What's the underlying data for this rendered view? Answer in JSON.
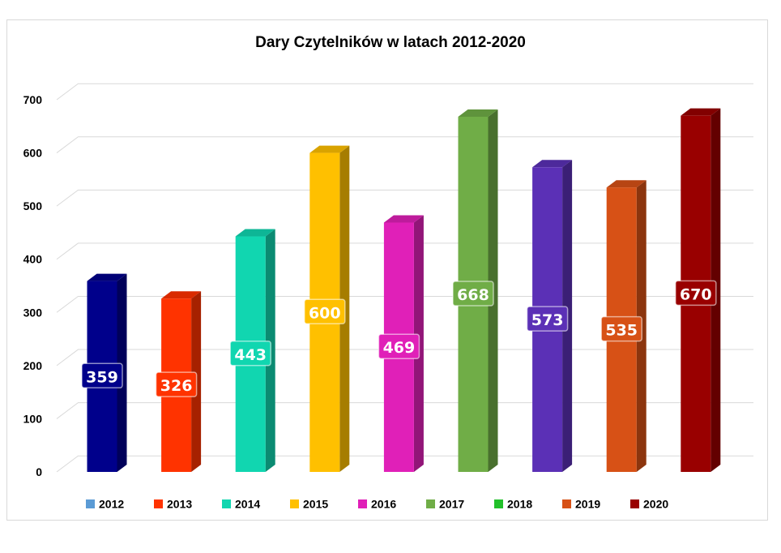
{
  "chart_data": {
    "type": "bar",
    "style": "3d-column",
    "title": "Dary Czytelników w latach 2012-2020",
    "categories": [
      "2012",
      "2013",
      "2014",
      "2015",
      "2016",
      "2017",
      "2018",
      "2019",
      "2020"
    ],
    "bars": [
      {
        "label": "359",
        "value": 359,
        "color": "#00008b"
      },
      {
        "label": "326",
        "value": 326,
        "color": "#ff3300"
      },
      {
        "label": "443",
        "value": 443,
        "color": "#11d6b0"
      },
      {
        "label": "600",
        "value": 600,
        "color": "#ffc000"
      },
      {
        "label": "469",
        "value": 469,
        "color": "#e020b8"
      },
      {
        "label": "668",
        "value": 668,
        "color": "#70ad47"
      },
      {
        "label": "573",
        "value": 573,
        "color": "#5b30b6"
      },
      {
        "label": "535",
        "value": 535,
        "color": "#d75116"
      },
      {
        "label": "670",
        "value": 670,
        "color": "#990000"
      }
    ],
    "legend": [
      {
        "name": "2012",
        "color": "#5b9bd5"
      },
      {
        "name": "2013",
        "color": "#ff3300"
      },
      {
        "name": "2014",
        "color": "#11d6b0"
      },
      {
        "name": "2015",
        "color": "#ffc000"
      },
      {
        "name": "2016",
        "color": "#e020b8"
      },
      {
        "name": "2017",
        "color": "#70ad47"
      },
      {
        "name": "2018",
        "color": "#22c02a"
      },
      {
        "name": "2019",
        "color": "#d75116"
      },
      {
        "name": "2020",
        "color": "#990000"
      }
    ],
    "y_ticks": [
      "0",
      "100",
      "200",
      "300",
      "400",
      "500",
      "600",
      "700"
    ],
    "ylim": [
      0,
      700
    ],
    "grid": true,
    "legend_position": "bottom"
  }
}
